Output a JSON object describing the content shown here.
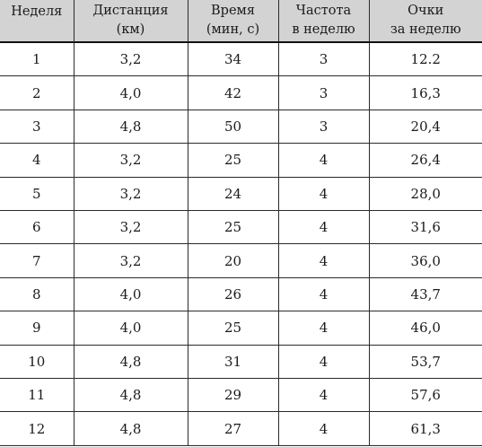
{
  "table": {
    "headers": [
      {
        "line1": "Неделя",
        "line2": ""
      },
      {
        "line1": "Дистанция",
        "line2": "(км)"
      },
      {
        "line1": "Время",
        "line2": "(мин, с)"
      },
      {
        "line1": "Частота",
        "line2": "в неделю"
      },
      {
        "line1": "Очки",
        "line2": "за неделю"
      }
    ],
    "rows": [
      [
        "1",
        "3,2",
        "34",
        "3",
        "12.2"
      ],
      [
        "2",
        "4,0",
        "42",
        "3",
        "16,3"
      ],
      [
        "3",
        "4,8",
        "50",
        "3",
        "20,4"
      ],
      [
        "4",
        "3,2",
        "25",
        "4",
        "26,4"
      ],
      [
        "5",
        "3,2",
        "24",
        "4",
        "28,0"
      ],
      [
        "6",
        "3,2",
        "25",
        "4",
        "31,6"
      ],
      [
        "7",
        "3,2",
        "20",
        "4",
        "36,0"
      ],
      [
        "8",
        "4,0",
        "26",
        "4",
        "43,7"
      ],
      [
        "9",
        "4,0",
        "25",
        "4",
        "46,0"
      ],
      [
        "10",
        "4,8",
        "31",
        "4",
        "53,7"
      ],
      [
        "11",
        "4,8",
        "29",
        "4",
        "57,6"
      ],
      [
        "12",
        "4,8",
        "27",
        "4",
        "61,3"
      ]
    ]
  }
}
